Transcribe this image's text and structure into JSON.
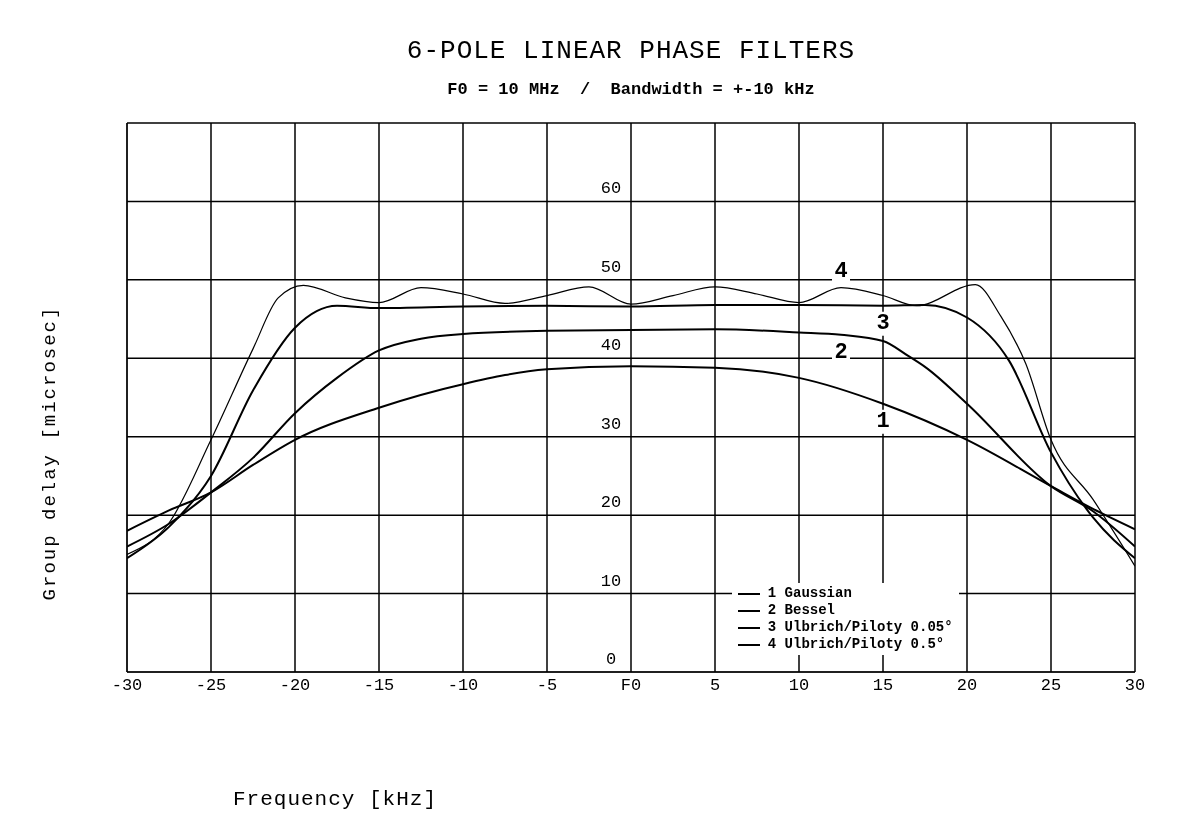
{
  "chart_data": {
    "type": "line",
    "title": "6-POLE LINEAR PHASE FILTERS",
    "subtitle": "F0 = 10 MHz  /  Bandwidth = +-10 kHz",
    "xlabel": "Frequency [kHz]",
    "ylabel": "Group delay [microsec]",
    "xlim": [
      -30,
      30
    ],
    "xticks": [
      -30,
      -25,
      -20,
      -15,
      -10,
      -5,
      {
        "value": 0,
        "label": "F0"
      },
      5,
      10,
      15,
      20,
      25,
      30
    ],
    "ylim": [
      0,
      70
    ],
    "yticks": [
      0,
      10,
      20,
      30,
      40,
      50,
      60
    ],
    "grid": true,
    "legend": "bottom right",
    "marker": "none",
    "series": [
      {
        "name": "1 Gaussian",
        "color": "#000000",
        "x": [
          -30,
          -27.5,
          -25,
          -22.5,
          -20,
          -15,
          -10,
          -5,
          0,
          5,
          10,
          15,
          20,
          25,
          27.5,
          30
        ],
        "values": [
          18.0,
          20.6,
          22.9,
          26.4,
          29.6,
          33.7,
          36.7,
          38.6,
          39.0,
          38.8,
          37.5,
          34.2,
          29.6,
          23.7,
          20.8,
          18.2
        ]
      },
      {
        "name": "2 Bessel",
        "color": "#000000",
        "x": [
          -30,
          -27.5,
          -25,
          -22.5,
          -20,
          -17.5,
          -15,
          -12.5,
          -10,
          -5,
          0,
          5,
          10,
          12.5,
          15,
          16.5,
          17.5,
          20,
          25,
          27.5,
          30
        ],
        "values": [
          16.0,
          18.9,
          22.9,
          27.3,
          33.0,
          37.5,
          41.0,
          42.5,
          43.1,
          43.5,
          43.6,
          43.7,
          43.3,
          43.0,
          42.2,
          40.3,
          38.9,
          34.2,
          23.7,
          20.5,
          16.0
        ]
      },
      {
        "name": "3 Ulbrich/Piloty 0.05°",
        "color": "#000000",
        "x": [
          -30,
          -27.5,
          -25,
          -22.5,
          -20,
          -17.5,
          -15,
          -10,
          -5,
          0,
          5,
          10,
          15,
          17.5,
          20,
          22.5,
          25,
          27.5,
          30
        ],
        "values": [
          14.5,
          18.5,
          25.0,
          35.9,
          43.9,
          46.7,
          46.4,
          46.6,
          46.7,
          46.6,
          46.8,
          46.8,
          46.7,
          46.8,
          45.2,
          39.7,
          28.0,
          19.7,
          14.5
        ]
      },
      {
        "name": "4 Ulbrich/Piloty 0.5°",
        "color": "#000000",
        "x": [
          -30,
          -27.5,
          -25,
          -22.5,
          -21,
          -19.5,
          -17,
          -15,
          -12.5,
          -10,
          -7.5,
          -5,
          -2.5,
          0,
          2.5,
          5,
          7.5,
          10,
          12.5,
          15,
          17,
          20.5,
          22,
          23.5,
          25,
          27.5,
          30
        ],
        "values": [
          15.0,
          19.0,
          29.6,
          41.2,
          47.7,
          49.3,
          47.7,
          47.1,
          49.0,
          48.2,
          47.0,
          48.0,
          49.1,
          46.9,
          48.0,
          49.1,
          48.2,
          47.1,
          49.0,
          48.0,
          46.7,
          49.4,
          45.4,
          39.3,
          29.6,
          22.0,
          13.5
        ]
      }
    ],
    "annotations": [
      "1",
      "2",
      "3",
      "4"
    ]
  }
}
